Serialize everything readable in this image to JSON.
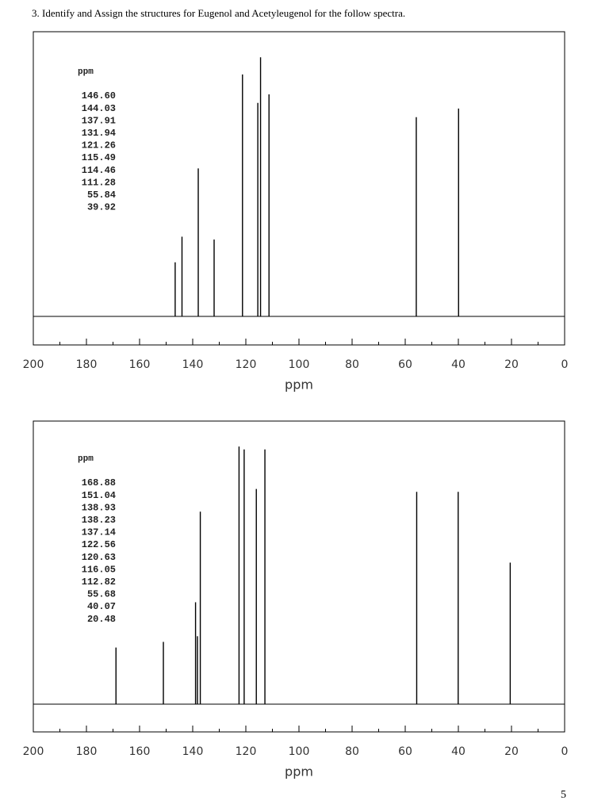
{
  "question": "3.  Identify and Assign the structures for Eugenol and Acetyleugenol for the follow spectra.",
  "page_number": "5",
  "chart_data": [
    {
      "type": "stem",
      "list_title": "ppm",
      "xlabel": "ppm",
      "x": [
        146.6,
        144.03,
        137.91,
        131.94,
        121.26,
        115.49,
        114.46,
        111.28,
        55.84,
        39.92
      ],
      "x_labels": [
        "146.60",
        "144.03",
        "137.91",
        "131.94",
        "121.26",
        "115.49",
        "114.46",
        "111.28",
        "55.84",
        "39.92"
      ],
      "values": [
        19,
        28,
        52,
        27,
        85,
        75,
        91,
        78,
        70,
        73
      ],
      "color": "#000000",
      "xlim": [
        200,
        0
      ],
      "ylim": [
        0,
        100
      ],
      "xticks": [
        200,
        180,
        160,
        140,
        120,
        100,
        80,
        60,
        40,
        20,
        0
      ],
      "minor_xticks": [
        190,
        170,
        150,
        130,
        110,
        90,
        70,
        50,
        30,
        10
      ]
    },
    {
      "type": "stem",
      "list_title": "ppm",
      "xlabel": "ppm",
      "x": [
        168.88,
        151.04,
        138.93,
        138.23,
        137.14,
        122.56,
        120.63,
        116.05,
        112.82,
        55.68,
        40.07,
        20.48
      ],
      "x_labels": [
        "168.88",
        "151.04",
        "138.93",
        "138.23",
        "137.14",
        "122.56",
        "120.63",
        "116.05",
        "112.82",
        "55.68",
        "40.07",
        "20.48"
      ],
      "values": [
        20,
        22,
        36,
        24,
        68,
        91,
        90,
        76,
        90,
        75,
        75,
        50
      ],
      "color": "#000000",
      "xlim": [
        200,
        0
      ],
      "ylim": [
        0,
        100
      ],
      "xticks": [
        200,
        180,
        160,
        140,
        120,
        100,
        80,
        60,
        40,
        20,
        0
      ],
      "minor_xticks": [
        190,
        170,
        150,
        130,
        110,
        90,
        70,
        50,
        30,
        10
      ]
    }
  ]
}
